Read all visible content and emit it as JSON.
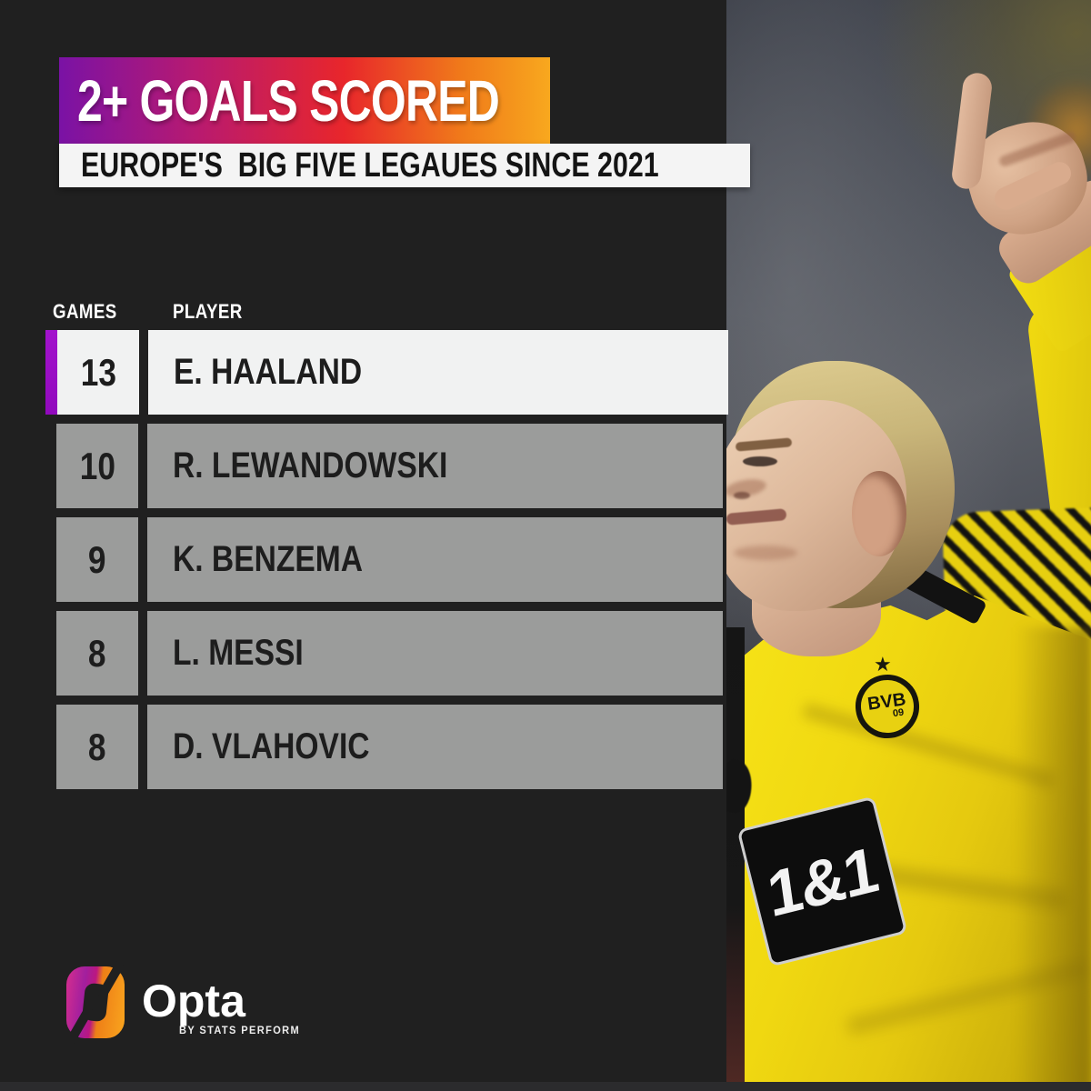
{
  "title": {
    "text": "2+ GOALS SCORED"
  },
  "subtitle": {
    "text": "EUROPE'S  BIG FIVE LEGAUES SINCE 2021"
  },
  "table": {
    "headers": {
      "games": "GAMES",
      "player": "PLAYER"
    },
    "rows": [
      {
        "games": "13",
        "player": "E. HAALAND",
        "highlighted": true
      },
      {
        "games": "10",
        "player": "R. LEWANDOWSKI",
        "highlighted": false
      },
      {
        "games": "9",
        "player": "K. BENZEMA",
        "highlighted": false
      },
      {
        "games": "8",
        "player": "L. MESSI",
        "highlighted": false
      },
      {
        "games": "8",
        "player": "D. VLAHOVIC",
        "highlighted": false
      }
    ]
  },
  "branding": {
    "logo_text": "Opta",
    "logo_subtext": "BY STATS PERFORM"
  },
  "photo": {
    "sponsor_text": "1&1",
    "badge_text": "BVB",
    "badge_number": "09",
    "star_icon": "★"
  },
  "colors": {
    "background": "#202020",
    "banner_gradient_start": "#7a12a5",
    "banner_gradient_mid": "#e8262b",
    "banner_gradient_end": "#f8a81e",
    "highlight_row_bg": "#f1f2f2",
    "row_bg": "#9b9c9b",
    "accent_stripe": "#9a0bc4",
    "jersey_yellow": "#f0d811"
  },
  "chart_data": {
    "type": "table",
    "title": "2+ GOALS SCORED",
    "subtitle": "EUROPE'S  BIG FIVE LEGAUES SINCE 2021",
    "columns": [
      "GAMES",
      "PLAYER"
    ],
    "rows": [
      [
        13,
        "E. HAALAND"
      ],
      [
        10,
        "R. LEWANDOWSKI"
      ],
      [
        9,
        "K. BENZEMA"
      ],
      [
        8,
        "L. MESSI"
      ],
      [
        8,
        "D. VLAHOVIC"
      ]
    ],
    "highlighted_row": "E. HAALAND",
    "grid": false,
    "legend_position": "none"
  }
}
